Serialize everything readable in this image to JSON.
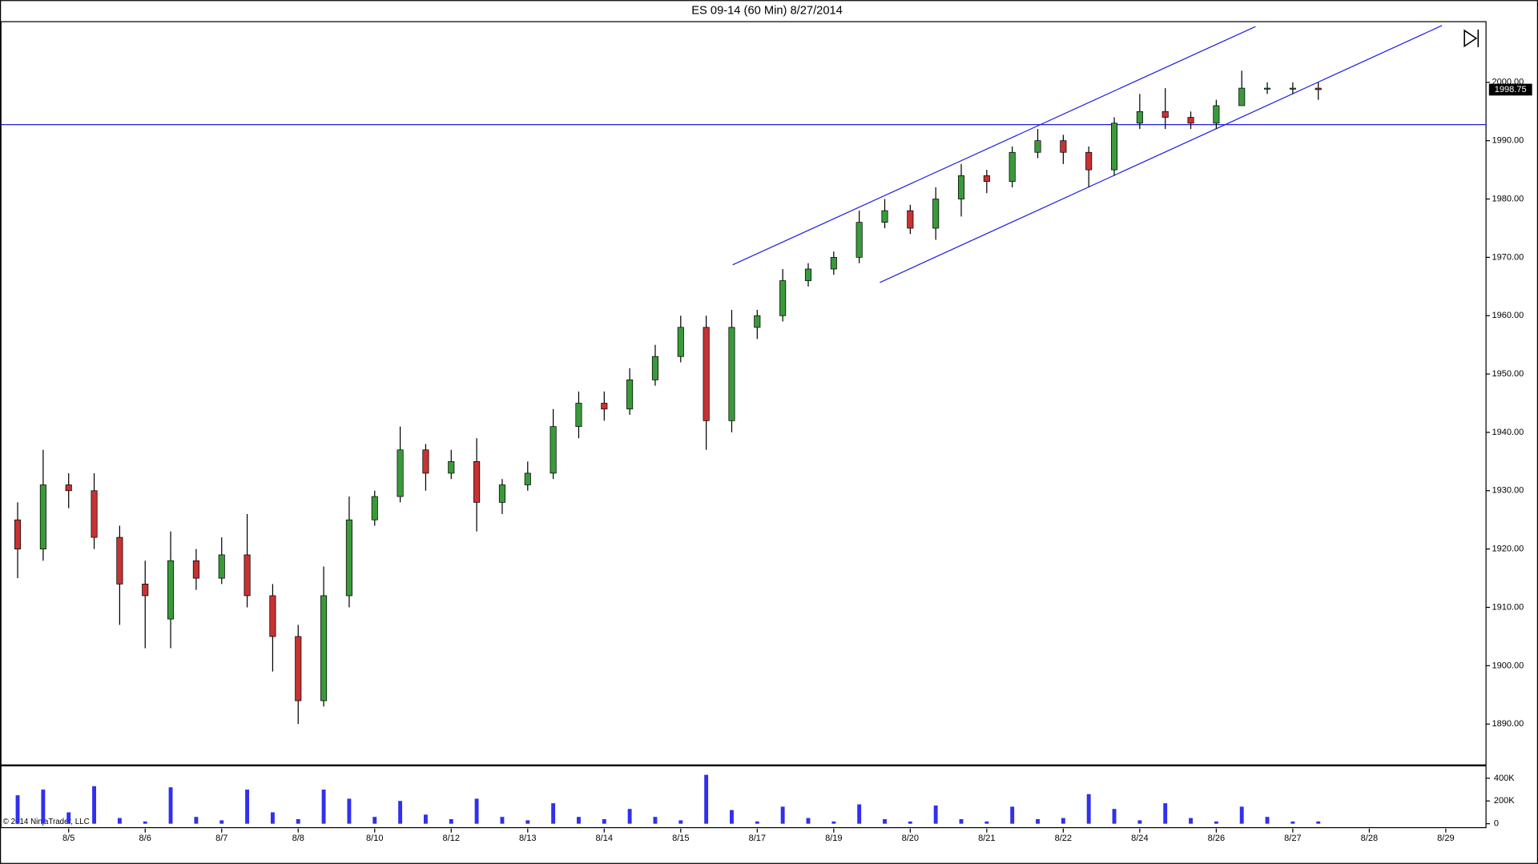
{
  "chart_data": {
    "type": "candlestick",
    "title": "ES 09-14 (60 Min)  8/27/2014",
    "copyright": "© 2014 NinjaTrader, LLC",
    "categories": [
      null,
      null,
      "8/5",
      null,
      null,
      "8/6",
      null,
      null,
      "8/7",
      null,
      null,
      "8/8",
      null,
      null,
      "8/10",
      null,
      null,
      "8/12",
      null,
      null,
      "8/13",
      null,
      null,
      "8/14",
      null,
      null,
      "8/15",
      null,
      null,
      "8/17",
      null,
      null,
      "8/19",
      null,
      null,
      "8/20",
      null,
      null,
      "8/21",
      null,
      null,
      "8/22",
      null,
      null,
      "8/24",
      null,
      null,
      "8/26",
      null,
      null,
      "8/27",
      null,
      null,
      "8/28",
      null,
      null,
      "8/29",
      null
    ],
    "open": [
      1925,
      1920,
      1931,
      1930,
      1922,
      1914,
      1908,
      1918,
      1915,
      1919,
      1912,
      1905,
      1894,
      1912,
      1925,
      1929,
      1937,
      1933,
      1935,
      1928,
      1931,
      1933,
      1941,
      1945,
      1944,
      1949,
      1953,
      1958,
      1942,
      1958,
      1960,
      1966,
      1968,
      1970,
      1976,
      1978,
      1975,
      1980,
      1984,
      1983,
      1988,
      1990,
      1988,
      1985,
      1993,
      1995,
      1994,
      1993,
      1996,
      1999,
      1999,
      1999,
      null,
      null,
      null,
      null,
      null,
      null
    ],
    "high": [
      1928,
      1937,
      1933,
      1933,
      1924,
      1918,
      1923,
      1920,
      1922,
      1926,
      1914,
      1907,
      1917,
      1929,
      1930,
      1941,
      1938,
      1937,
      1939,
      1932,
      1935,
      1944,
      1947,
      1947,
      1951,
      1955,
      1960,
      1960,
      1961,
      1961,
      1968,
      1969,
      1971,
      1978,
      1980,
      1979,
      1982,
      1986,
      1985,
      1989,
      1992,
      1991,
      1989,
      1994,
      1998,
      1999,
      1995,
      1997,
      2002,
      2000,
      2000,
      2000,
      null,
      null,
      null,
      null,
      null,
      null
    ],
    "low": [
      1915,
      1918,
      1927,
      1920,
      1907,
      1903,
      1903,
      1913,
      1914,
      1910,
      1899,
      1890,
      1893,
      1910,
      1924,
      1928,
      1930,
      1932,
      1923,
      1926,
      1930,
      1932,
      1939,
      1942,
      1943,
      1948,
      1952,
      1937,
      1940,
      1956,
      1959,
      1965,
      1967,
      1969,
      1975,
      1974,
      1973,
      1977,
      1981,
      1982,
      1987,
      1986,
      1982,
      1984,
      1992,
      1992,
      1992,
      1992,
      1996,
      1998,
      1998,
      1997,
      null,
      null,
      null,
      null,
      null,
      null
    ],
    "close": [
      1920,
      1931,
      1930,
      1922,
      1914,
      1912,
      1918,
      1915,
      1919,
      1912,
      1905,
      1894,
      1912,
      1925,
      1929,
      1937,
      1933,
      1935,
      1928,
      1931,
      1933,
      1941,
      1945,
      1944,
      1949,
      1953,
      1958,
      1942,
      1958,
      1960,
      1966,
      1968,
      1970,
      1976,
      1978,
      1975,
      1980,
      1984,
      1983,
      1988,
      1990,
      1988,
      1985,
      1993,
      1995,
      1994,
      1993,
      1996,
      1999,
      1999,
      1999,
      1998.75,
      null,
      null,
      null,
      null,
      null,
      null
    ],
    "up_color": "#3a9a3a",
    "down_color": "#c83232",
    "ylim": [
      1883,
      2010.4
    ],
    "yticks": [
      {
        "value": 1890,
        "label": "1890.00"
      },
      {
        "value": 1900,
        "label": "1900.00"
      },
      {
        "value": 1910,
        "label": "1910.00"
      },
      {
        "value": 1920,
        "label": "1920.00"
      },
      {
        "value": 1930,
        "label": "1930.00"
      },
      {
        "value": 1940,
        "label": "1940.00"
      },
      {
        "value": 1950,
        "label": "1950.00"
      },
      {
        "value": 1960,
        "label": "1960.00"
      },
      {
        "value": 1970,
        "label": "1970.00"
      },
      {
        "value": 1980,
        "label": "1980.00"
      },
      {
        "value": 1990,
        "label": "1990.00"
      },
      {
        "value": 2000,
        "label": "2000.00"
      }
    ],
    "volume": {
      "values": [
        250,
        300,
        100,
        330,
        50,
        20,
        320,
        60,
        30,
        300,
        100,
        40,
        300,
        220,
        60,
        200,
        80,
        40,
        220,
        60,
        30,
        180,
        60,
        40,
        130,
        60,
        30,
        430,
        120,
        20,
        150,
        50,
        20,
        170,
        40,
        20,
        160,
        40,
        20,
        150,
        40,
        50,
        260,
        130,
        30,
        180,
        50,
        20,
        150,
        60,
        20,
        20,
        null,
        null,
        null,
        null,
        null,
        null
      ],
      "color": "#3030ee",
      "ylim": [
        0,
        500
      ],
      "yticks": [
        0,
        {
          "value": 200,
          "label": "200K"
        },
        {
          "value": 400,
          "label": "400K"
        }
      ]
    }
  }
}
